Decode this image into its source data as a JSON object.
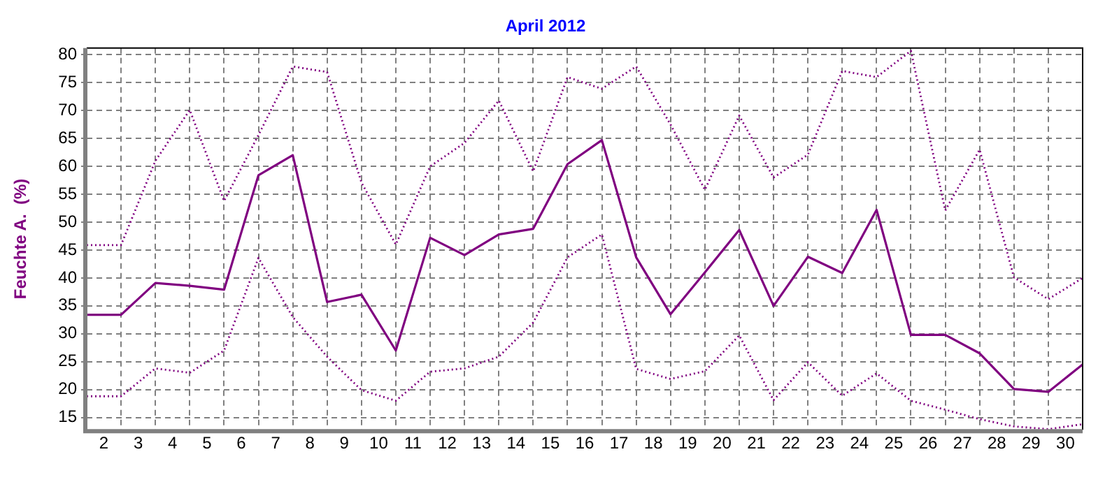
{
  "chart_data": {
    "type": "line",
    "title": "April 2012",
    "ylabel": "Feuchte A.  (%)",
    "x": [
      1.5,
      2.5,
      3.5,
      4.5,
      5.5,
      6.5,
      7.5,
      8.5,
      9.5,
      10.5,
      11.5,
      12.5,
      13.5,
      14.5,
      15.5,
      16.5,
      17.5,
      18.5,
      19.5,
      20.5,
      21.5,
      22.5,
      23.5,
      24.5,
      25.5,
      26.5,
      27.5,
      28.5,
      29.5,
      30.5
    ],
    "series": [
      {
        "color": "#800080",
        "line_style": "dotted",
        "values": [
          45.9,
          45.9,
          61.0,
          70.1,
          53.8,
          65.6,
          77.9,
          76.9,
          57.1,
          46.0,
          60.0,
          64.2,
          71.8,
          59.1,
          76.0,
          73.9,
          77.9,
          67.5,
          55.8,
          69.1,
          58.0,
          62.1,
          77.1,
          76.0,
          80.7,
          52.1,
          63.0,
          40.1,
          36.2,
          40.0
        ]
      },
      {
        "color": "#800080",
        "line_style": "solid",
        "values": [
          33.4,
          33.4,
          39.1,
          38.6,
          37.9,
          58.4,
          62.0,
          35.7,
          37.0,
          27.0,
          47.2,
          44.1,
          47.8,
          48.8,
          60.4,
          64.7,
          43.7,
          33.5,
          41.0,
          48.6,
          35.0,
          43.8,
          40.9,
          52.2,
          29.8,
          29.8,
          26.5,
          20.1,
          19.6,
          24.5
        ]
      },
      {
        "color": "#800080",
        "line_style": "dotted",
        "values": [
          18.8,
          18.8,
          23.8,
          23.0,
          27.0,
          43.6,
          33.0,
          25.9,
          19.9,
          18.0,
          23.2,
          23.8,
          25.9,
          32.0,
          43.7,
          47.8,
          23.7,
          21.9,
          23.3,
          29.7,
          18.1,
          24.9,
          18.9,
          22.9,
          18.0,
          16.4,
          14.7,
          13.4,
          12.9,
          13.8
        ]
      }
    ],
    "xlim": [
      1.5,
      30.5
    ],
    "xticks": [
      {
        "value": 1.5,
        "label": null
      },
      2,
      {
        "value": 2.5,
        "label": null
      },
      3,
      {
        "value": 3.5,
        "label": null
      },
      4,
      {
        "value": 4.5,
        "label": null
      },
      5,
      {
        "value": 5.5,
        "label": null
      },
      6,
      {
        "value": 6.5,
        "label": null
      },
      7,
      {
        "value": 7.5,
        "label": null
      },
      8,
      {
        "value": 8.5,
        "label": null
      },
      9,
      {
        "value": 9.5,
        "label": null
      },
      10,
      {
        "value": 10.5,
        "label": null
      },
      11,
      {
        "value": 11.5,
        "label": null
      },
      12,
      {
        "value": 12.5,
        "label": null
      },
      13,
      {
        "value": 13.5,
        "label": null
      },
      14,
      {
        "value": 14.5,
        "label": null
      },
      15,
      {
        "value": 15.5,
        "label": null
      },
      16,
      {
        "value": 16.5,
        "label": null
      },
      17,
      {
        "value": 17.5,
        "label": null
      },
      18,
      {
        "value": 18.5,
        "label": null
      },
      19,
      {
        "value": 19.5,
        "label": null
      },
      20,
      {
        "value": 20.5,
        "label": null
      },
      21,
      {
        "value": 21.5,
        "label": null
      },
      22,
      {
        "value": 22.5,
        "label": null
      },
      23,
      {
        "value": 23.5,
        "label": null
      },
      24,
      {
        "value": 24.5,
        "label": null
      },
      25,
      {
        "value": 25.5,
        "label": null
      },
      26,
      {
        "value": 26.5,
        "label": null
      },
      27,
      {
        "value": 27.5,
        "label": null
      },
      28,
      {
        "value": 28.5,
        "label": null
      },
      29,
      {
        "value": 29.5,
        "label": null
      },
      30,
      {
        "value": 30.5,
        "label": null
      }
    ],
    "ylim": [
      12.8,
      81.2
    ],
    "yticks": [
      15,
      20,
      25,
      30,
      35,
      40,
      45,
      50,
      55,
      60,
      65,
      70,
      75,
      80
    ],
    "grid": true,
    "legend": false,
    "marker": "none"
  }
}
